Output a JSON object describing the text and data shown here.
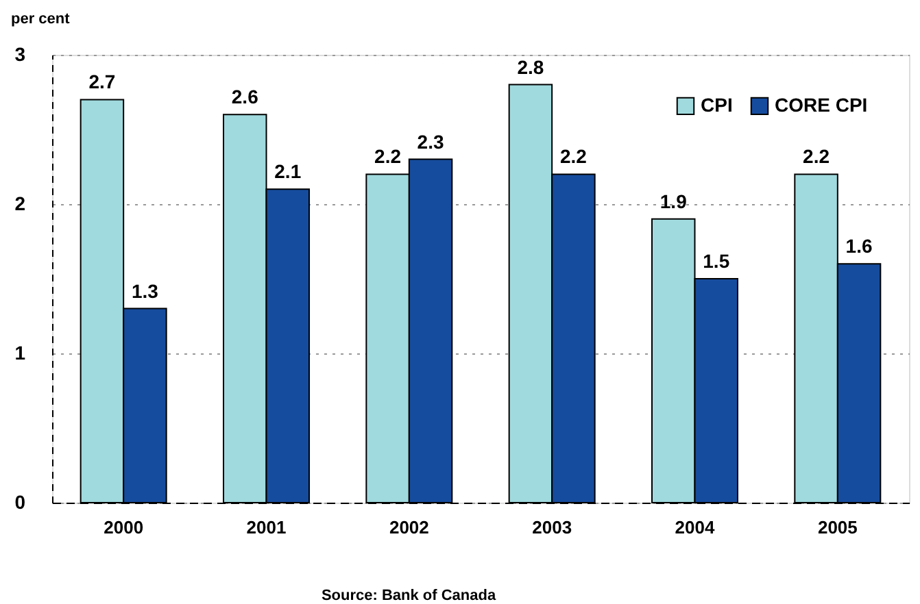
{
  "chart_data": {
    "type": "bar",
    "ylabel": "per cent",
    "categories": [
      "2000",
      "2001",
      "2002",
      "2003",
      "2004",
      "2005"
    ],
    "series": [
      {
        "name": "CPI",
        "color": "#a0dade",
        "values": [
          2.7,
          2.6,
          2.2,
          2.8,
          1.9,
          2.2
        ]
      },
      {
        "name": "CORE CPI",
        "color": "#164c9e",
        "values": [
          1.3,
          2.1,
          2.3,
          2.2,
          1.5,
          1.6
        ]
      }
    ],
    "ylim": [
      0,
      3
    ],
    "yticks": [
      0,
      1,
      2,
      3
    ],
    "grid": "y",
    "legend": "top right",
    "data_labels": true,
    "annotations": [
      "Source: Bank of Canada"
    ]
  }
}
